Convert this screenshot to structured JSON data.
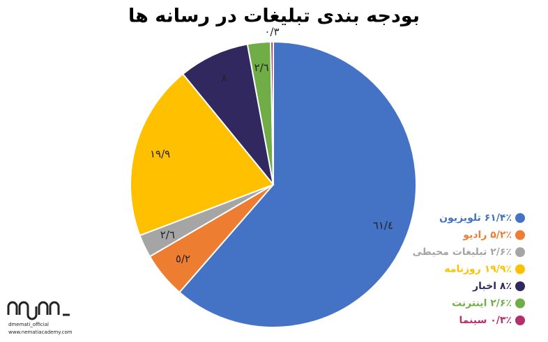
{
  "chart_data": {
    "type": "pie",
    "title": "بودجه بندی تبلیغات در رسانه ها",
    "categories": [
      "۶۱/۴٪ تلویزیون",
      "۵/۲٪ رادیو",
      "۲/۶٪ تبلیغات محیطی",
      "۱۹/۹٪ روزنامه",
      "۸٪ اخبار",
      "۲/۶٪ اینترنت",
      "۰/۳٪ سینما"
    ],
    "values": [
      61.4,
      5.2,
      2.6,
      19.9,
      8,
      2.6,
      0.3
    ],
    "value_labels": [
      "٦١/٤",
      "٥/٢",
      "٢/٦",
      "١٩/٩",
      "٨",
      "٢/٦",
      "٠/٣"
    ],
    "colors": [
      "#4472c4",
      "#ed7d31",
      "#a5a5a5",
      "#ffc000",
      "#30285e",
      "#70ad47",
      "#b3306b"
    ],
    "legend": "right"
  },
  "watermark": {
    "handle": "dmemati_official",
    "website": "www.nematiacademy.com"
  }
}
